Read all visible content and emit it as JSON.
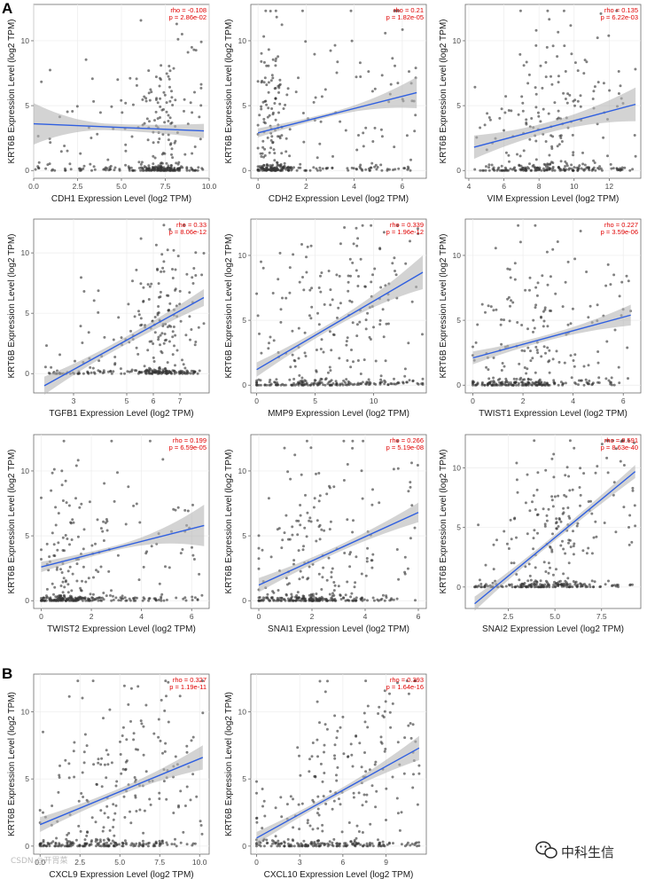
{
  "panel_letters": [
    "A",
    "B"
  ],
  "watermark": {
    "text": "中科生信",
    "icon": "wechat-icon",
    "left_text": "CSDN @开胃菜"
  },
  "chart_data": [
    {
      "type": "scatter",
      "panel": "A",
      "xlabel": "CDH1 Expression Level (log2 TPM)",
      "ylabel": "KRT6B Expression Level (log2 TPM)",
      "rho": "rho = -0.108",
      "p": "p = 2.86e-02",
      "xlim": [
        0,
        10
      ],
      "ylim": [
        -0.6,
        12.8
      ],
      "xticks": [
        "0.0",
        "2.5",
        "5.0",
        "7.5",
        "10.0"
      ],
      "yticks": [
        0,
        5,
        10
      ],
      "fit": {
        "x": [
          0,
          9.7
        ],
        "y": [
          3.6,
          3.05
        ]
      },
      "ci_halfwidth_ends": [
        1.6,
        0.55
      ],
      "cluster": [
        6.0,
        8.8
      ],
      "point_count": 330
    },
    {
      "type": "scatter",
      "panel": "A",
      "xlabel": "CDH2 Expression Level (log2 TPM)",
      "ylabel": "KRT6B Expression Level (log2 TPM)",
      "rho": "rho = 0.21",
      "p": "p = 1.82e-05",
      "xlim": [
        -0.3,
        7
      ],
      "ylim": [
        -0.6,
        12.8
      ],
      "xticks": [
        0,
        2,
        4,
        6
      ],
      "yticks": [
        0,
        5,
        10
      ],
      "fit": {
        "x": [
          0,
          6.6
        ],
        "y": [
          2.9,
          6.0
        ]
      },
      "ci_halfwidth_ends": [
        0.35,
        1.2
      ],
      "cluster": [
        0,
        1.2
      ],
      "point_count": 330
    },
    {
      "type": "scatter",
      "panel": "A",
      "xlabel": "VIM Expression Level (log2 TPM)",
      "ylabel": "KRT6B Expression Level (log2 TPM)",
      "rho": "rho = 0.135",
      "p": "p = 6.22e-03",
      "xlim": [
        3.8,
        13.8
      ],
      "ylim": [
        -0.6,
        12.8
      ],
      "xticks": [
        4,
        6,
        8,
        10,
        12
      ],
      "yticks": [
        0,
        5,
        10
      ],
      "fit": {
        "x": [
          4.3,
          13.5
        ],
        "y": [
          1.8,
          5.1
        ]
      },
      "ci_halfwidth_ends": [
        0.9,
        1.3
      ],
      "cluster": [
        6.0,
        11.0
      ],
      "point_count": 320
    },
    {
      "type": "scatter",
      "panel": "A",
      "xlabel": "TGFB1 Expression Level (log2 TPM)",
      "ylabel": "KRT6B Expression Level (log2 TPM)",
      "rho": "rho = 0.33",
      "p": "p = 8.06e-12",
      "xlim": [
        1.5,
        8.1
      ],
      "ylim": [
        -1.6,
        12.8
      ],
      "xticks": [
        3,
        5,
        6,
        7
      ],
      "yticks": [
        0,
        5,
        10
      ],
      "fit": {
        "x": [
          1.9,
          7.9
        ],
        "y": [
          -1.0,
          6.3
        ]
      },
      "ci_halfwidth_ends": [
        0.75,
        0.7
      ],
      "cluster": [
        5.2,
        7.4
      ],
      "point_count": 320
    },
    {
      "type": "scatter",
      "panel": "A",
      "xlabel": "MMP9 Expression Level (log2 TPM)",
      "ylabel": "KRT6B Expression Level (log2 TPM)",
      "rho": "rho = 0.339",
      "p": "p = 1.96e-12",
      "xlim": [
        -0.5,
        14.5
      ],
      "ylim": [
        -0.6,
        12.8
      ],
      "xticks": [
        0,
        5,
        10
      ],
      "yticks": [
        0,
        5,
        10
      ],
      "fit": {
        "x": [
          0,
          14.2
        ],
        "y": [
          1.2,
          8.7
        ]
      },
      "ci_halfwidth_ends": [
        0.55,
        1.3
      ],
      "cluster": [
        0,
        13.0
      ],
      "point_count": 330
    },
    {
      "type": "scatter",
      "panel": "A",
      "xlabel": "TWIST1 Expression Level (log2 TPM)",
      "ylabel": "KRT6B Expression Level (log2 TPM)",
      "rho": "rho = 0.227",
      "p": "p = 3.59e-06",
      "xlim": [
        -0.3,
        6.7
      ],
      "ylim": [
        -0.6,
        12.8
      ],
      "xticks": [
        0,
        2,
        4,
        6
      ],
      "yticks": [
        0,
        5,
        10
      ],
      "fit": {
        "x": [
          0,
          6.3
        ],
        "y": [
          2.1,
          5.4
        ]
      },
      "ci_halfwidth_ends": [
        0.5,
        0.8
      ],
      "cluster": [
        0,
        3.5
      ],
      "point_count": 320
    },
    {
      "type": "scatter",
      "panel": "A",
      "xlabel": "TWIST2 Expression Level (log2 TPM)",
      "ylabel": "KRT6B Expression Level (log2 TPM)",
      "rho": "rho = 0.199",
      "p": "p = 6.59e-05",
      "xlim": [
        -0.3,
        6.7
      ],
      "ylim": [
        -0.6,
        12.8
      ],
      "xticks": [
        0,
        2,
        4,
        6
      ],
      "yticks": [
        0,
        5,
        10
      ],
      "fit": {
        "x": [
          0,
          6.5
        ],
        "y": [
          2.6,
          5.8
        ]
      },
      "ci_halfwidth_ends": [
        0.4,
        1.6
      ],
      "cluster": [
        0,
        2.2
      ],
      "point_count": 330
    },
    {
      "type": "scatter",
      "panel": "A",
      "xlabel": "SNAI1 Expression Level (log2 TPM)",
      "ylabel": "KRT6B Expression Level (log2 TPM)",
      "rho": "rho = 0.266",
      "p": "p = 5.19e-08",
      "xlim": [
        -0.3,
        6.3
      ],
      "ylim": [
        -0.6,
        12.8
      ],
      "xticks": [
        0,
        2,
        4,
        6
      ],
      "yticks": [
        0,
        5,
        10
      ],
      "fit": {
        "x": [
          0,
          6.0
        ],
        "y": [
          1.2,
          6.8
        ]
      },
      "ci_halfwidth_ends": [
        0.55,
        0.75
      ],
      "cluster": [
        0,
        3.8
      ],
      "point_count": 330
    },
    {
      "type": "scatter",
      "panel": "A",
      "xlabel": "SNAI2 Expression Level (log2 TPM)",
      "ylabel": "KRT6B Expression Level (log2 TPM)",
      "rho": "rho = 0.591",
      "p": "p = 8.63e-40",
      "xlim": [
        0.2,
        9.6
      ],
      "ylim": [
        -1.8,
        12.8
      ],
      "xticks": [
        "2.5",
        "5.0",
        "7.5"
      ],
      "yticks": [
        0,
        5,
        10
      ],
      "fit": {
        "x": [
          0.7,
          9.3
        ],
        "y": [
          -1.4,
          9.7
        ]
      },
      "ci_halfwidth_ends": [
        0.6,
        0.55
      ],
      "cluster": [
        2.5,
        7.0
      ],
      "point_count": 330
    },
    {
      "type": "scatter",
      "panel": "B",
      "xlabel": "CXCL9 Expression Level (log2 TPM)",
      "ylabel": "KRT6B Expression Level (log2 TPM)",
      "rho": "rho = 0.327",
      "p": "p = 1.19e-11",
      "xlim": [
        -0.4,
        10.6
      ],
      "ylim": [
        -0.6,
        12.8
      ],
      "xticks": [
        "0.0",
        "2.5",
        "5.0",
        "7.5",
        "10.0"
      ],
      "yticks": [
        0,
        5,
        10
      ],
      "fit": {
        "x": [
          0,
          10.2
        ],
        "y": [
          1.6,
          6.6
        ]
      },
      "ci_halfwidth_ends": [
        0.55,
        0.9
      ],
      "cluster": [
        0,
        8.5
      ],
      "point_count": 330
    },
    {
      "type": "scatter",
      "panel": "B",
      "xlabel": "CXCL10 Expression Level (log2 TPM)",
      "ylabel": "KRT6B Expression Level (log2 TPM)",
      "rho": "rho = 0.393",
      "p": "p = 1.64e-16",
      "xlim": [
        -0.4,
        11.8
      ],
      "ylim": [
        -0.6,
        12.8
      ],
      "xticks": [
        0,
        3,
        6,
        9
      ],
      "yticks": [
        0,
        5,
        10
      ],
      "fit": {
        "x": [
          0,
          11.3
        ],
        "y": [
          0.6,
          7.3
        ]
      },
      "ci_halfwidth_ends": [
        0.45,
        0.9
      ],
      "cluster": [
        0,
        10.0
      ],
      "point_count": 330
    }
  ]
}
